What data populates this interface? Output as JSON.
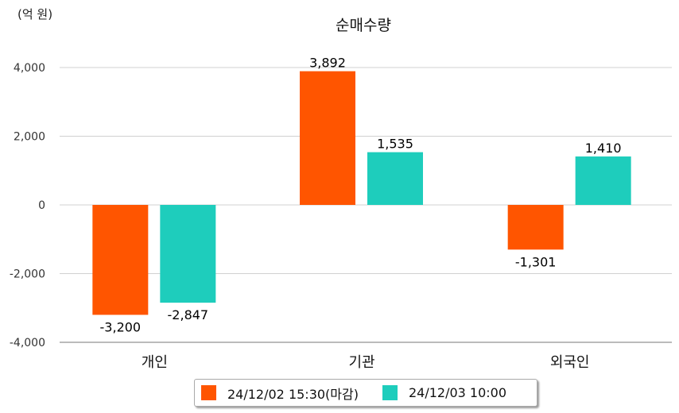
{
  "chart_data": {
    "type": "bar",
    "title": "순매수량",
    "unit_label": "(억 원)",
    "categories": [
      "개인",
      "기관",
      "외국인"
    ],
    "series": [
      {
        "name": "24/12/02 15:30(마감)",
        "color": "#ff5500",
        "values": [
          -3200,
          3892,
          -1301
        ],
        "labels": [
          "-3,200",
          "3,892",
          "-1,301"
        ]
      },
      {
        "name": "24/12/03 10:00",
        "color": "#1ecdbc",
        "values": [
          -2847,
          1535,
          1410
        ],
        "labels": [
          "-2,847",
          "1,535",
          "1,410"
        ]
      }
    ],
    "ylim": [
      -4000,
      4000
    ],
    "yticks": [
      4000,
      2000,
      0,
      -2000,
      -4000
    ],
    "ytick_labels": [
      "4,000",
      "2,000",
      "0",
      "-2,000",
      "-4,000"
    ],
    "grid": true,
    "legend_position": "bottom"
  }
}
